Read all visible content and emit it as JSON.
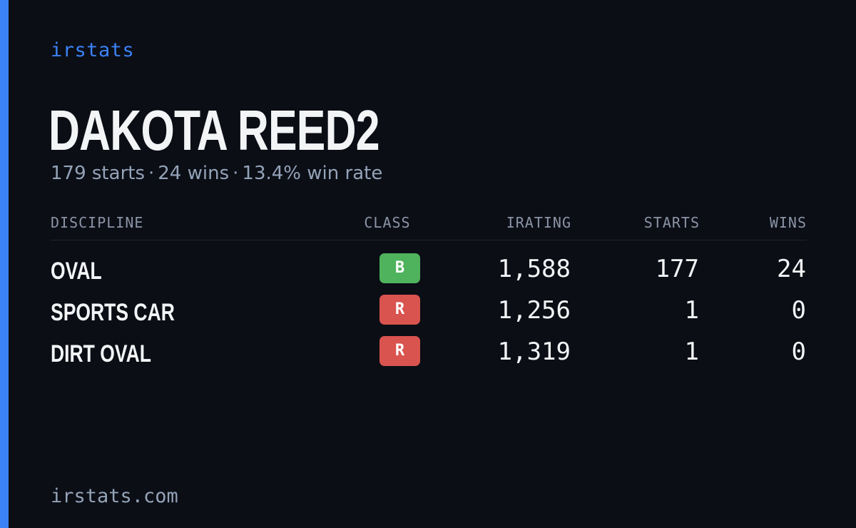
{
  "brand": "irstats",
  "player": {
    "name": "DAKOTA REED2",
    "starts_text": "179 starts",
    "wins_text": "24 wins",
    "win_rate_text": "13.4% win rate",
    "separator": "·"
  },
  "table": {
    "headers": {
      "discipline": "DISCIPLINE",
      "class": "CLASS",
      "irating": "IRATING",
      "starts": "STARTS",
      "wins": "WINS"
    },
    "rows": [
      {
        "discipline": "OVAL",
        "class": "B",
        "class_color": "#4fb35d",
        "irating": "1,588",
        "starts": "177",
        "wins": "24"
      },
      {
        "discipline": "SPORTS CAR",
        "class": "R",
        "class_color": "#d9534f",
        "irating": "1,256",
        "starts": "1",
        "wins": "0"
      },
      {
        "discipline": "DIRT OVAL",
        "class": "R",
        "class_color": "#d9534f",
        "irating": "1,319",
        "starts": "1",
        "wins": "0"
      }
    ]
  },
  "footer": "irstats.com",
  "colors": {
    "accent": "#3b82f6",
    "background": "#0b0e15"
  }
}
